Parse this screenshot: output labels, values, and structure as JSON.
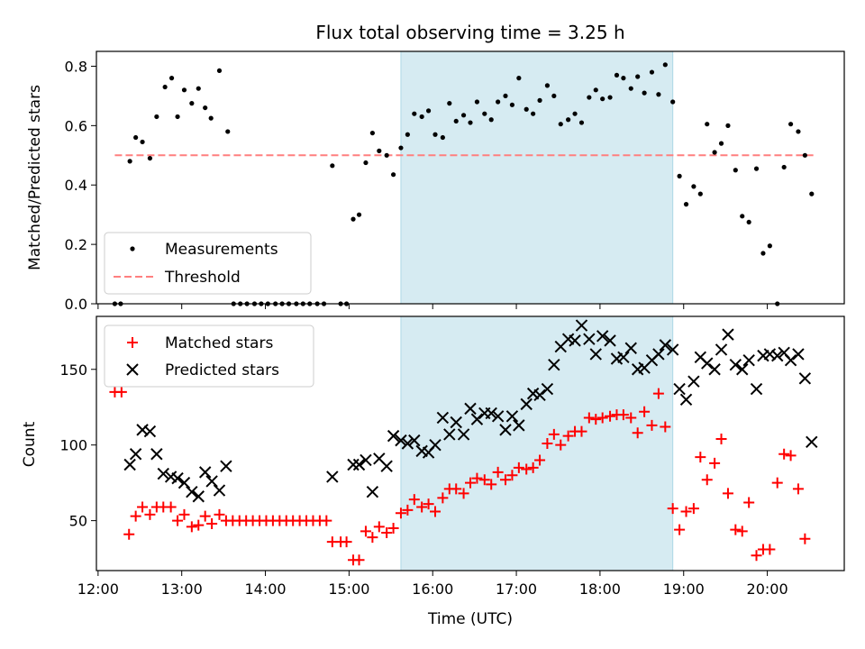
{
  "chart_data": {
    "title": "Flux total observing time = 3.25 h",
    "xlabel": "Time (UTC)",
    "x_ticks": [
      "12:00",
      "13:00",
      "14:00",
      "15:00",
      "16:00",
      "17:00",
      "18:00",
      "19:00",
      "20:00"
    ],
    "xlim": [
      11.98,
      20.92
    ],
    "shaded_interval": [
      15.62,
      18.87
    ],
    "top_panel": {
      "type": "scatter",
      "ylabel": "Matched/Predicted stars",
      "ylim": [
        0,
        0.85
      ],
      "y_ticks": [
        0.0,
        0.2,
        0.4,
        0.6,
        0.8
      ],
      "threshold": 0.5,
      "legend": [
        "Measurements",
        "Threshold"
      ],
      "measurements": [
        [
          12.2,
          0
        ],
        [
          12.27,
          0
        ],
        [
          12.38,
          0.48
        ],
        [
          12.45,
          0.56
        ],
        [
          12.53,
          0.545
        ],
        [
          12.62,
          0.49
        ],
        [
          12.7,
          0.63
        ],
        [
          12.8,
          0.73
        ],
        [
          12.88,
          0.76
        ],
        [
          12.95,
          0.63
        ],
        [
          13.03,
          0.72
        ],
        [
          13.12,
          0.675
        ],
        [
          13.2,
          0.725
        ],
        [
          13.28,
          0.66
        ],
        [
          13.35,
          0.625
        ],
        [
          13.45,
          0.785
        ],
        [
          13.55,
          0.58
        ],
        [
          13.62,
          0
        ],
        [
          13.7,
          0
        ],
        [
          13.78,
          0
        ],
        [
          13.87,
          0
        ],
        [
          13.95,
          0
        ],
        [
          14.03,
          0
        ],
        [
          14.12,
          0
        ],
        [
          14.2,
          0
        ],
        [
          14.28,
          0
        ],
        [
          14.37,
          0
        ],
        [
          14.45,
          0
        ],
        [
          14.53,
          0
        ],
        [
          14.62,
          0
        ],
        [
          14.7,
          0
        ],
        [
          14.8,
          0.465
        ],
        [
          14.9,
          0
        ],
        [
          14.97,
          0
        ],
        [
          15.05,
          0.285
        ],
        [
          15.12,
          0.3
        ],
        [
          15.2,
          0.475
        ],
        [
          15.28,
          0.575
        ],
        [
          15.36,
          0.515
        ],
        [
          15.45,
          0.5
        ],
        [
          15.53,
          0.435
        ],
        [
          15.62,
          0.525
        ],
        [
          15.7,
          0.57
        ],
        [
          15.78,
          0.64
        ],
        [
          15.87,
          0.63
        ],
        [
          15.95,
          0.65
        ],
        [
          16.03,
          0.57
        ],
        [
          16.12,
          0.56
        ],
        [
          16.2,
          0.675
        ],
        [
          16.28,
          0.615
        ],
        [
          16.37,
          0.635
        ],
        [
          16.45,
          0.61
        ],
        [
          16.53,
          0.68
        ],
        [
          16.62,
          0.64
        ],
        [
          16.7,
          0.62
        ],
        [
          16.78,
          0.68
        ],
        [
          16.87,
          0.7
        ],
        [
          16.95,
          0.67
        ],
        [
          17.03,
          0.76
        ],
        [
          17.12,
          0.655
        ],
        [
          17.2,
          0.64
        ],
        [
          17.28,
          0.685
        ],
        [
          17.37,
          0.735
        ],
        [
          17.45,
          0.7
        ],
        [
          17.53,
          0.605
        ],
        [
          17.62,
          0.62
        ],
        [
          17.7,
          0.64
        ],
        [
          17.78,
          0.61
        ],
        [
          17.87,
          0.695
        ],
        [
          17.95,
          0.72
        ],
        [
          18.03,
          0.69
        ],
        [
          18.12,
          0.695
        ],
        [
          18.2,
          0.77
        ],
        [
          18.28,
          0.76
        ],
        [
          18.37,
          0.725
        ],
        [
          18.45,
          0.765
        ],
        [
          18.53,
          0.71
        ],
        [
          18.62,
          0.78
        ],
        [
          18.7,
          0.705
        ],
        [
          18.78,
          0.805
        ],
        [
          18.87,
          0.68
        ],
        [
          18.95,
          0.43
        ],
        [
          19.03,
          0.335
        ],
        [
          19.12,
          0.395
        ],
        [
          19.2,
          0.37
        ],
        [
          19.28,
          0.605
        ],
        [
          19.37,
          0.51
        ],
        [
          19.45,
          0.54
        ],
        [
          19.53,
          0.6
        ],
        [
          19.62,
          0.45
        ],
        [
          19.7,
          0.295
        ],
        [
          19.78,
          0.275
        ],
        [
          19.87,
          0.455
        ],
        [
          19.95,
          0.17
        ],
        [
          20.03,
          0.195
        ],
        [
          20.12,
          0
        ],
        [
          20.2,
          0.46
        ],
        [
          20.28,
          0.605
        ],
        [
          20.37,
          0.58
        ],
        [
          20.45,
          0.5
        ],
        [
          20.53,
          0.37
        ]
      ]
    },
    "bottom_panel": {
      "type": "scatter",
      "ylabel": "Count",
      "ylim": [
        17,
        185
      ],
      "y_ticks": [
        50,
        100,
        150
      ],
      "legend": [
        "Matched stars",
        "Predicted stars"
      ],
      "matched": [
        [
          12.2,
          135
        ],
        [
          12.28,
          135
        ],
        [
          12.37,
          41
        ],
        [
          12.45,
          53
        ],
        [
          12.53,
          59
        ],
        [
          12.62,
          54
        ],
        [
          12.7,
          59
        ],
        [
          12.78,
          59
        ],
        [
          12.87,
          59
        ],
        [
          12.95,
          50
        ],
        [
          13.03,
          54
        ],
        [
          13.12,
          46
        ],
        [
          13.2,
          47
        ],
        [
          13.28,
          53
        ],
        [
          13.36,
          48
        ],
        [
          13.45,
          54
        ],
        [
          13.53,
          50
        ],
        [
          13.61,
          50
        ],
        [
          13.69,
          50
        ],
        [
          13.77,
          50
        ],
        [
          13.85,
          50
        ],
        [
          13.93,
          50
        ],
        [
          14.01,
          50
        ],
        [
          14.09,
          50
        ],
        [
          14.17,
          50
        ],
        [
          14.25,
          50
        ],
        [
          14.33,
          50
        ],
        [
          14.41,
          50
        ],
        [
          14.49,
          50
        ],
        [
          14.57,
          50
        ],
        [
          14.65,
          50
        ],
        [
          14.73,
          50
        ],
        [
          14.8,
          36
        ],
        [
          14.9,
          36
        ],
        [
          14.97,
          36
        ],
        [
          15.05,
          24
        ],
        [
          15.12,
          24
        ],
        [
          15.2,
          43
        ],
        [
          15.28,
          39
        ],
        [
          15.36,
          46
        ],
        [
          15.45,
          42
        ],
        [
          15.53,
          45
        ],
        [
          15.62,
          55
        ],
        [
          15.7,
          57
        ],
        [
          15.78,
          64
        ],
        [
          15.87,
          59
        ],
        [
          15.95,
          61
        ],
        [
          16.03,
          56
        ],
        [
          16.12,
          65
        ],
        [
          16.2,
          71
        ],
        [
          16.28,
          71
        ],
        [
          16.37,
          68
        ],
        [
          16.45,
          75
        ],
        [
          16.53,
          78
        ],
        [
          16.62,
          77
        ],
        [
          16.7,
          74
        ],
        [
          16.78,
          82
        ],
        [
          16.87,
          77
        ],
        [
          16.95,
          80
        ],
        [
          17.03,
          85
        ],
        [
          17.12,
          84
        ],
        [
          17.2,
          85
        ],
        [
          17.28,
          90
        ],
        [
          17.37,
          101
        ],
        [
          17.45,
          107
        ],
        [
          17.53,
          100
        ],
        [
          17.62,
          106
        ],
        [
          17.7,
          109
        ],
        [
          17.78,
          109
        ],
        [
          17.87,
          118
        ],
        [
          17.95,
          117
        ],
        [
          18.03,
          118
        ],
        [
          18.12,
          119
        ],
        [
          18.2,
          120
        ],
        [
          18.28,
          120
        ],
        [
          18.37,
          118
        ],
        [
          18.45,
          108
        ],
        [
          18.53,
          122
        ],
        [
          18.62,
          113
        ],
        [
          18.7,
          134
        ],
        [
          18.78,
          112
        ],
        [
          18.87,
          58
        ],
        [
          18.95,
          44
        ],
        [
          19.03,
          56
        ],
        [
          19.12,
          58
        ],
        [
          19.2,
          92
        ],
        [
          19.28,
          77
        ],
        [
          19.37,
          88
        ],
        [
          19.45,
          104
        ],
        [
          19.53,
          68
        ],
        [
          19.62,
          44
        ],
        [
          19.7,
          43
        ],
        [
          19.78,
          62
        ],
        [
          19.87,
          27
        ],
        [
          19.95,
          31
        ],
        [
          20.03,
          31
        ],
        [
          20.12,
          75
        ],
        [
          20.2,
          94
        ],
        [
          20.28,
          93
        ],
        [
          20.37,
          71
        ],
        [
          20.45,
          38
        ]
      ],
      "predicted": [
        [
          12.38,
          87
        ],
        [
          12.45,
          94
        ],
        [
          12.53,
          110
        ],
        [
          12.62,
          109
        ],
        [
          12.7,
          94
        ],
        [
          12.78,
          81
        ],
        [
          12.87,
          79
        ],
        [
          12.95,
          78
        ],
        [
          13.03,
          75
        ],
        [
          13.12,
          69
        ],
        [
          13.2,
          66
        ],
        [
          13.28,
          82
        ],
        [
          13.36,
          76
        ],
        [
          13.45,
          70
        ],
        [
          13.53,
          86
        ],
        [
          14.8,
          79
        ],
        [
          15.05,
          87
        ],
        [
          15.12,
          87
        ],
        [
          15.2,
          90
        ],
        [
          15.28,
          69
        ],
        [
          15.36,
          91
        ],
        [
          15.45,
          86
        ],
        [
          15.53,
          106
        ],
        [
          15.62,
          103
        ],
        [
          15.7,
          101
        ],
        [
          15.78,
          103
        ],
        [
          15.87,
          96
        ],
        [
          15.95,
          95
        ],
        [
          16.03,
          100
        ],
        [
          16.12,
          118
        ],
        [
          16.2,
          107
        ],
        [
          16.28,
          115
        ],
        [
          16.37,
          107
        ],
        [
          16.45,
          124
        ],
        [
          16.53,
          117
        ],
        [
          16.62,
          121
        ],
        [
          16.7,
          121
        ],
        [
          16.78,
          119
        ],
        [
          16.87,
          110
        ],
        [
          16.95,
          119
        ],
        [
          17.03,
          113
        ],
        [
          17.12,
          127
        ],
        [
          17.2,
          134
        ],
        [
          17.28,
          133
        ],
        [
          17.37,
          137
        ],
        [
          17.45,
          153
        ],
        [
          17.53,
          165
        ],
        [
          17.62,
          170
        ],
        [
          17.7,
          169
        ],
        [
          17.78,
          179
        ],
        [
          17.87,
          170
        ],
        [
          17.95,
          160
        ],
        [
          18.03,
          172
        ],
        [
          18.12,
          169
        ],
        [
          18.2,
          157
        ],
        [
          18.28,
          158
        ],
        [
          18.37,
          164
        ],
        [
          18.45,
          150
        ],
        [
          18.53,
          151
        ],
        [
          18.62,
          156
        ],
        [
          18.7,
          160
        ],
        [
          18.78,
          166
        ],
        [
          18.87,
          163
        ],
        [
          18.95,
          137
        ],
        [
          19.03,
          130
        ],
        [
          19.12,
          142
        ],
        [
          19.2,
          158
        ],
        [
          19.28,
          154
        ],
        [
          19.37,
          150
        ],
        [
          19.45,
          163
        ],
        [
          19.53,
          173
        ],
        [
          19.62,
          153
        ],
        [
          19.7,
          150
        ],
        [
          19.78,
          156
        ],
        [
          19.87,
          137
        ],
        [
          19.95,
          159
        ],
        [
          20.03,
          160
        ],
        [
          20.12,
          159
        ],
        [
          20.2,
          161
        ],
        [
          20.28,
          156
        ],
        [
          20.37,
          160
        ],
        [
          20.45,
          144
        ],
        [
          20.53,
          102
        ]
      ]
    }
  }
}
